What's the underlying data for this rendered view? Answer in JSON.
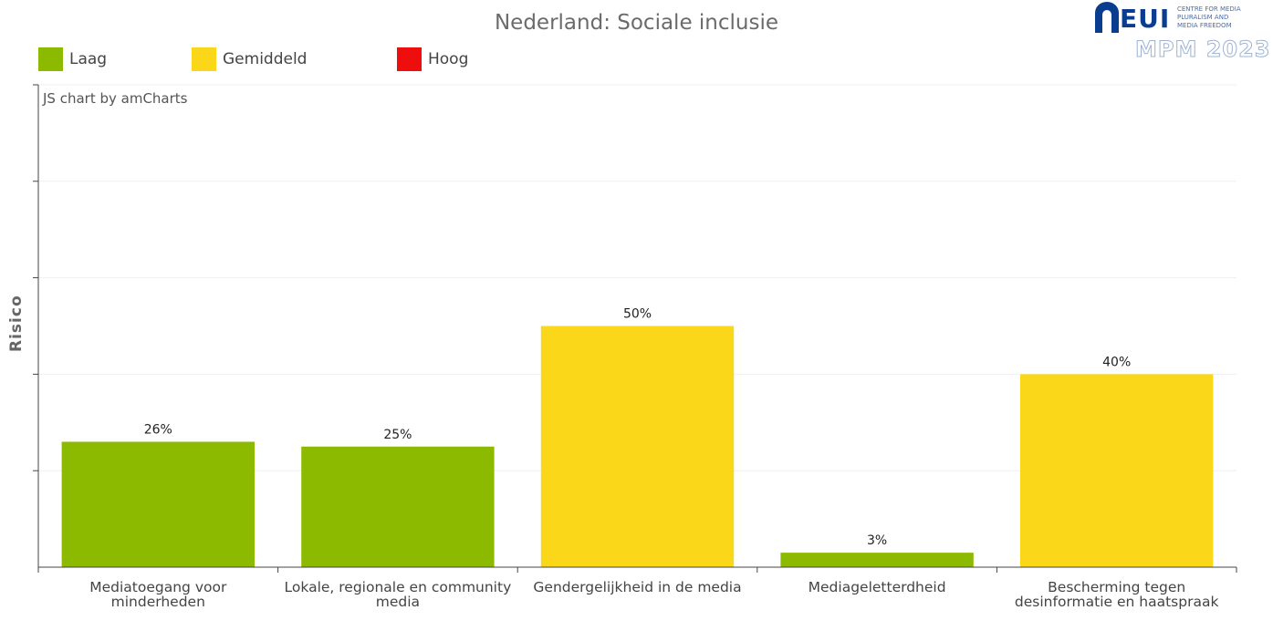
{
  "chart_data": {
    "type": "bar",
    "title": "Nederland: Sociale inclusie",
    "ylabel": "Risico",
    "xlabel": "",
    "ylim": [
      0,
      100
    ],
    "grid": true,
    "legend_position": "top-left",
    "legend": [
      {
        "label": "Laag",
        "color": "#8cba00"
      },
      {
        "label": "Gemiddeld",
        "color": "#fad719"
      },
      {
        "label": "Hoog",
        "color": "#ee0e0e"
      }
    ],
    "categories": [
      "Mediatoegang voor minderheden",
      "Lokale, regionale en community media",
      "Gendergelijkheid in de media",
      "Mediageletterdheid",
      "Bescherming tegen desinformatie en haatspraak"
    ],
    "values": [
      26,
      25,
      50,
      3,
      40
    ],
    "value_labels": [
      "26%",
      "25%",
      "50%",
      "3%",
      "40%"
    ],
    "bar_colors": [
      "#8cba00",
      "#8cba00",
      "#fad719",
      "#8cba00",
      "#fad719"
    ]
  },
  "credit": "JS chart by amCharts",
  "logo": {
    "name": "EUI",
    "line1": "CENTRE FOR MEDIA",
    "line2": "PLURALISM AND",
    "line3": "MEDIA FREEDOM",
    "mpm": "MPM 2023"
  }
}
